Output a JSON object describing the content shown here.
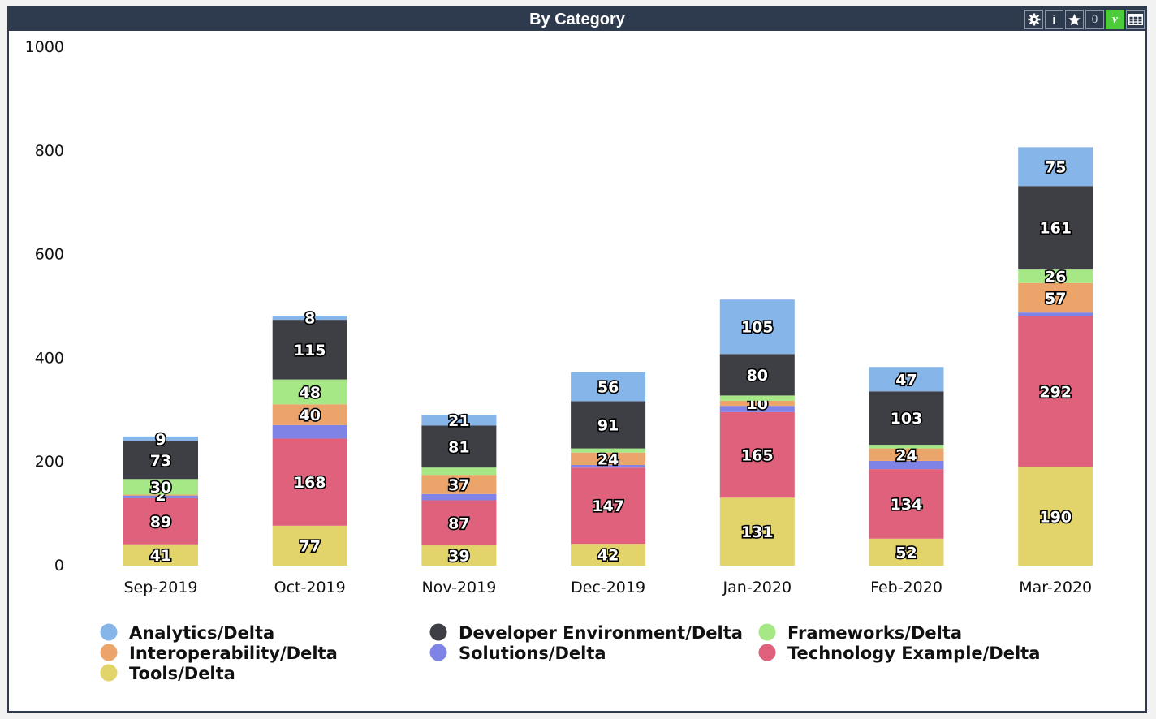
{
  "window": {
    "title": "By Category",
    "toolbar": {
      "settings_icon": "gear-icon",
      "info_label": "i",
      "favorite_icon": "star-icon",
      "count_label": "0",
      "v_label": "v",
      "table_icon": "table-icon"
    }
  },
  "colors": {
    "header_bg": "#2e3b4e",
    "toolbar_v": "#4ccc3a"
  },
  "chart_data": {
    "type": "bar",
    "stacked": true,
    "title": "",
    "xlabel": "",
    "ylabel": "",
    "ylim": [
      0,
      1000
    ],
    "yticks": [
      0,
      200,
      400,
      600,
      800,
      1000
    ],
    "categories": [
      "Sep-2019",
      "Oct-2019",
      "Nov-2019",
      "Dec-2019",
      "Jan-2020",
      "Feb-2020",
      "Mar-2020"
    ],
    "legend_position": "bottom",
    "series": [
      {
        "name": "Tools/Delta",
        "color": "#e2d36b",
        "values": [
          41,
          77,
          39,
          42,
          131,
          52,
          190
        ]
      },
      {
        "name": "Technology Example/Delta",
        "color": "#e0617b",
        "values": [
          89,
          168,
          87,
          147,
          165,
          134,
          292
        ]
      },
      {
        "name": "Solutions/Delta",
        "color": "#8083e6",
        "values": [
          5,
          26,
          12,
          5,
          12,
          16,
          6
        ]
      },
      {
        "name": "Interoperability/Delta",
        "color": "#eba46a",
        "values": [
          2,
          40,
          37,
          24,
          10,
          24,
          57
        ]
      },
      {
        "name": "Frameworks/Delta",
        "color": "#a6e886",
        "values": [
          30,
          48,
          14,
          8,
          10,
          7,
          26
        ]
      },
      {
        "name": "Developer Environment/Delta",
        "color": "#3e3f45",
        "values": [
          73,
          115,
          81,
          91,
          80,
          103,
          161
        ]
      },
      {
        "name": "Analytics/Delta",
        "color": "#86b5e9",
        "values": [
          9,
          8,
          21,
          56,
          105,
          47,
          75
        ]
      }
    ],
    "data_labels": [
      [
        41,
        89,
        null,
        2,
        30,
        73,
        9
      ],
      [
        77,
        168,
        null,
        40,
        48,
        115,
        8
      ],
      [
        39,
        87,
        null,
        37,
        null,
        81,
        21
      ],
      [
        42,
        147,
        null,
        24,
        null,
        91,
        56
      ],
      [
        131,
        165,
        null,
        10,
        null,
        80,
        105
      ],
      [
        52,
        134,
        null,
        24,
        null,
        103,
        47
      ],
      [
        190,
        292,
        null,
        57,
        26,
        161,
        75
      ]
    ],
    "legend_order": [
      "Analytics/Delta",
      "Developer Environment/Delta",
      "Frameworks/Delta",
      "Interoperability/Delta",
      "Solutions/Delta",
      "Technology Example/Delta",
      "Tools/Delta"
    ]
  }
}
